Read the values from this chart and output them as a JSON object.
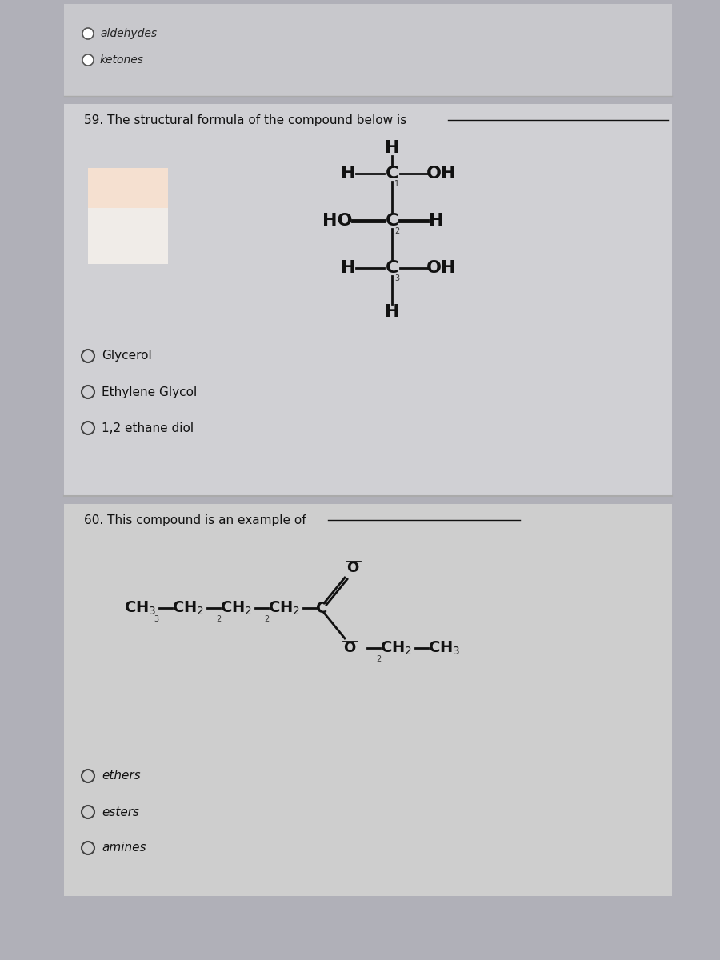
{
  "bg_color": "#b0b0b8",
  "panel_top_bg": "#c8c8cc",
  "panel59_bg": "#d0d0d4",
  "panel60_bg": "#cecece",
  "text_color": "#111111",
  "section1_title": "59. The structural formula of the compound below is",
  "section2_title": "60. This compound is an example of",
  "q59_options": [
    "Glycerol",
    "Ethylene Glycol",
    "1,2 ethane diol"
  ],
  "q60_options": [
    "ethers",
    "esters",
    "amines"
  ],
  "top_options": [
    "aldehydes",
    "ketones"
  ]
}
